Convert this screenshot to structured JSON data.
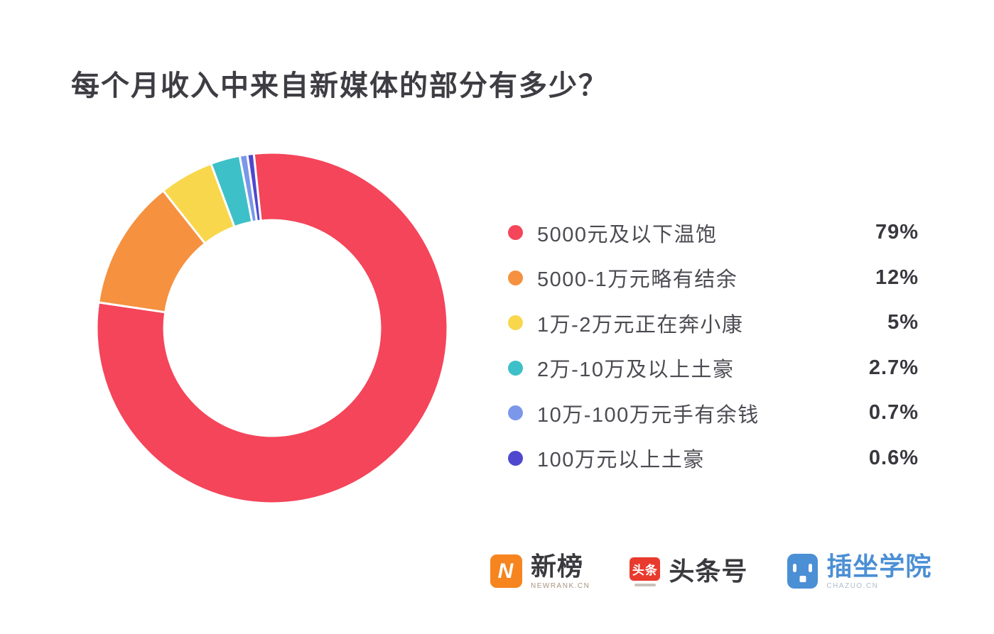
{
  "page": {
    "background": "#FFFFFF"
  },
  "chart_data": {
    "type": "pie",
    "variant": "donut",
    "title": "每个月收入中来自新媒体的部分有多少？",
    "categories": [
      "5000元及以下温饱",
      "5000-1万元略有结余",
      "1万-2万元正在奔小康",
      "2万-10万及以上土豪",
      "10万-100万元手有余钱",
      "100万元以上土豪"
    ],
    "values": [
      79,
      12,
      5,
      2.7,
      0.7,
      0.6
    ],
    "series": [
      {
        "label": "5000元及以下温饱",
        "value": 79,
        "value_label": "79%",
        "color": "#F4455A"
      },
      {
        "label": "5000-1万元略有结余",
        "value": 12,
        "value_label": "12%",
        "color": "#F5913F"
      },
      {
        "label": "1万-2万元正在奔小康",
        "value": 5,
        "value_label": "5%",
        "color": "#F8D74D"
      },
      {
        "label": "2万-10万及以上土豪",
        "value": 2.7,
        "value_label": "2.7%",
        "color": "#3DC0C8"
      },
      {
        "label": "10万-100万元手有余钱",
        "value": 0.7,
        "value_label": "0.7%",
        "color": "#7A97E9"
      },
      {
        "label": "100万元以上土豪",
        "value": 0.6,
        "value_label": "0.6%",
        "color": "#4F48CE"
      }
    ],
    "total": 100,
    "start_angle_deg": -6,
    "donut_hole_ratio": 0.615,
    "slice_gap_color": "#FFFFFF",
    "legend_position": "right",
    "grid": false
  },
  "footer": {
    "logos": [
      {
        "brand": "新榜",
        "subtext": "NEWRANK.CN",
        "icon": "newrank-n-icon",
        "icon_letter": "N",
        "icon_color": "#F6841F",
        "brand_color": "#3a3a3e"
      },
      {
        "brand": "头条号",
        "icon": "toutiao-icon",
        "icon_text": "头条",
        "icon_color": "#E93A2E",
        "brand_color": "#3a3a3e"
      },
      {
        "brand": "插坐学院",
        "subtext": "CHAZUO.CN",
        "icon": "chazuo-face-icon",
        "icon_color": "#4B8FD5",
        "brand_color": "#4b8fd5"
      }
    ]
  }
}
